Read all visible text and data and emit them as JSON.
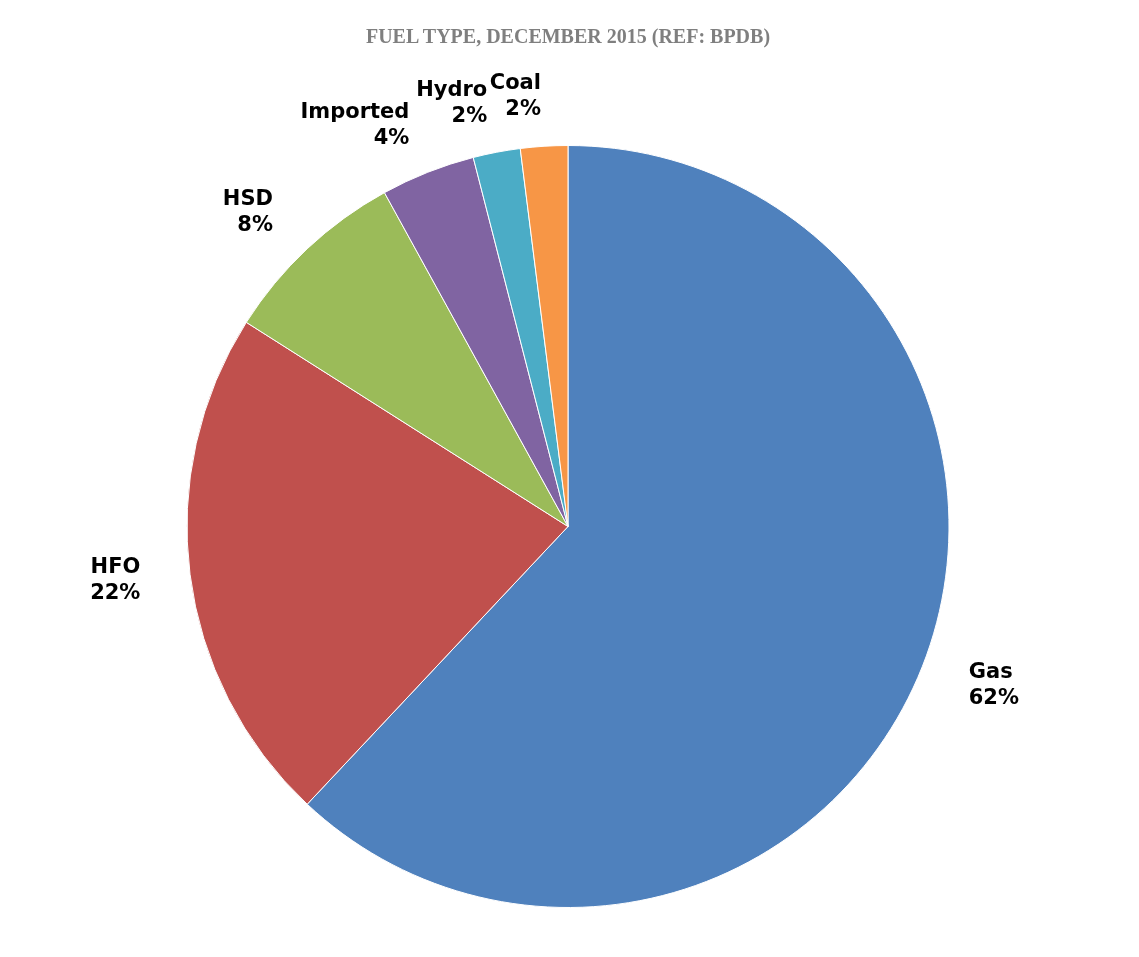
{
  "chart_data": {
    "type": "pie",
    "title": "FUEL TYPE, DECEMBER 2015 (REF: BPDB)",
    "categories": [
      "Gas",
      "HFO",
      "HSD",
      "Imported",
      "Hydro",
      "Coal"
    ],
    "values": [
      62,
      22,
      8,
      4,
      2,
      2
    ],
    "colors": [
      "#4f81bd",
      "#c0504d",
      "#9bbb59",
      "#8064a2",
      "#4bacc6",
      "#f79646"
    ],
    "value_labels": [
      "62%",
      "22%",
      "8%",
      "4%",
      "2%",
      "2%"
    ],
    "legend": false
  }
}
